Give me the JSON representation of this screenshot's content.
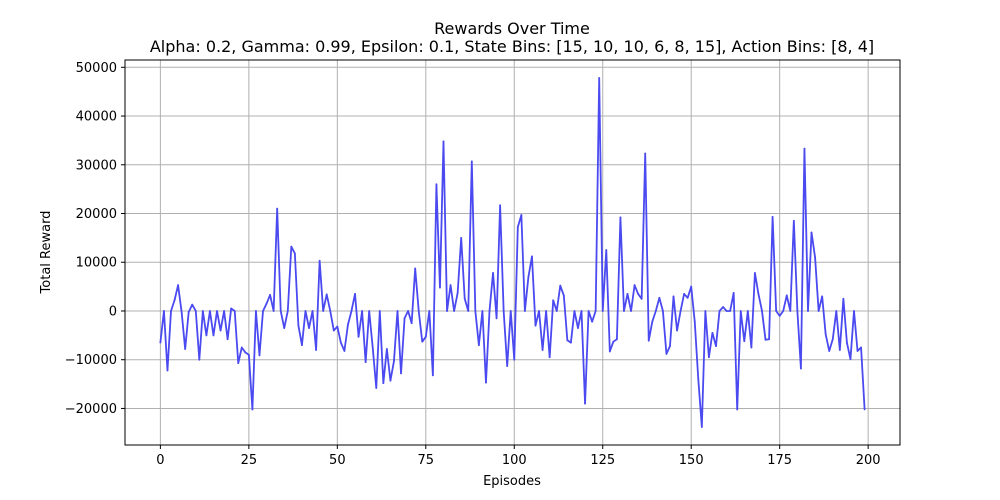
{
  "chart_data": {
    "type": "line",
    "title": "Rewards Over Time",
    "subtitle": "Alpha: 0.2, Gamma: 0.99, Epsilon: 0.1, State Bins: [15, 10, 10, 6, 8, 15], Action Bins: [8, 4]",
    "xlabel": "Episodes",
    "ylabel": "Total Reward",
    "xlim": [
      -10,
      209
    ],
    "ylim": [
      -27500,
      51500
    ],
    "xticks": [
      0,
      25,
      50,
      75,
      100,
      125,
      150,
      175,
      200
    ],
    "yticks": [
      -20000,
      -10000,
      0,
      10000,
      20000,
      30000,
      40000,
      50000
    ],
    "xtick_labels": [
      "0",
      "25",
      "50",
      "75",
      "100",
      "125",
      "150",
      "175",
      "200"
    ],
    "ytick_labels": [
      "−20000",
      "−10000",
      "0",
      "10000",
      "20000",
      "30000",
      "40000",
      "50000"
    ],
    "grid": true,
    "series_color": "#4a4af0",
    "series": [
      {
        "values": [
          -6500,
          0,
          -12200,
          0,
          2200,
          5300,
          -200,
          -7800,
          -200,
          1300,
          0,
          -10000,
          0,
          -5000,
          0,
          -5000,
          0,
          -4000,
          0,
          -5800,
          500,
          0,
          -10700,
          -7500,
          -8500,
          -9000,
          -20200,
          0,
          -9100,
          0,
          1500,
          3300,
          0,
          21000,
          0,
          -3500,
          0,
          13200,
          11800,
          -3000,
          -7000,
          0,
          -3500,
          0,
          -8000,
          10300,
          0,
          3400,
          0,
          -4000,
          -3200,
          -6500,
          -8200,
          -2800,
          0,
          3500,
          -5300,
          0,
          -10500,
          0,
          -7500,
          -15800,
          0,
          -14800,
          -7800,
          -14300,
          -10300,
          0,
          -12800,
          -1500,
          0,
          -2500,
          8700,
          0,
          -6300,
          -5300,
          0,
          -13200,
          26000,
          4800,
          34800,
          0,
          5300,
          0,
          3700,
          15000,
          2500,
          0,
          30700,
          0,
          -7000,
          0,
          -14700,
          0,
          7800,
          -1500,
          21700,
          0,
          -11300,
          0,
          -10000,
          17200,
          19700,
          0,
          7000,
          11200,
          -3000,
          0,
          -8000,
          0,
          -9500,
          2200,
          0,
          5200,
          3200,
          -6000,
          -6500,
          0,
          -3500,
          0,
          -19000,
          0,
          -2200,
          0,
          47800,
          0,
          12500,
          -8300,
          -6300,
          -5800,
          19200,
          0,
          3500,
          0,
          5300,
          3500,
          2500,
          32300,
          -6100,
          -2200,
          0,
          2700,
          0,
          -8800,
          -7200,
          3000,
          -4000,
          0,
          3500,
          2700,
          5000,
          -2200,
          -14000,
          -23800,
          0,
          -9500,
          -4500,
          -7200,
          0,
          800,
          0,
          0,
          3700,
          -20200,
          0,
          -6200,
          0,
          -7500,
          7800,
          3500,
          0,
          -5900,
          -5800,
          19300,
          0,
          -1000,
          0,
          3200,
          0,
          18500,
          0,
          -11800,
          33300,
          0,
          16100,
          11000,
          0,
          3000,
          -4800,
          -8200,
          -5800,
          0,
          -8000,
          2500,
          -6500,
          -9900,
          0,
          -8200,
          -7500,
          -20200
        ]
      }
    ]
  }
}
